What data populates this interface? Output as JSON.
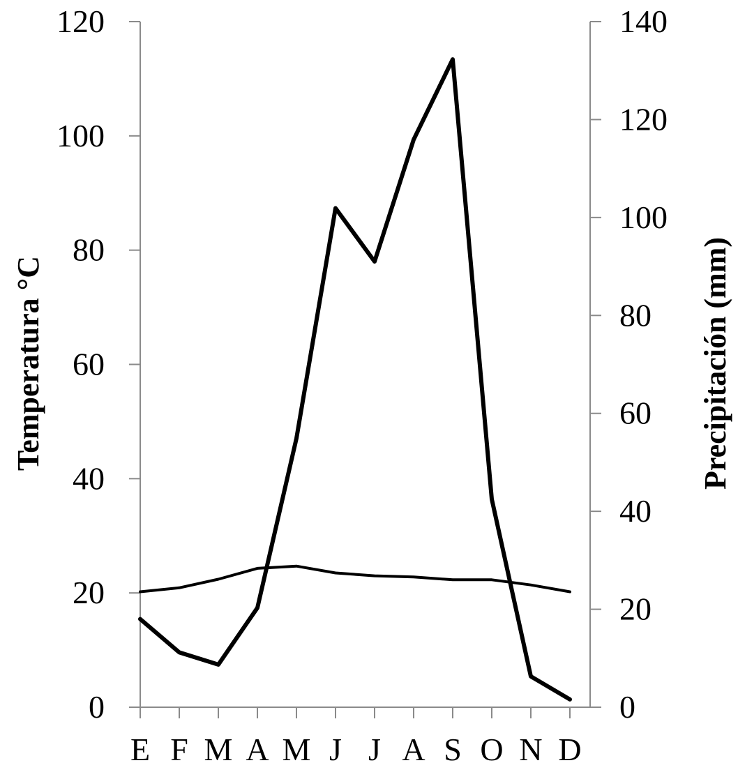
{
  "chart_data": {
    "type": "line",
    "title": "",
    "x": [
      "E",
      "F",
      "M",
      "A",
      "M",
      "J",
      "J",
      "A",
      "S",
      "O",
      "N",
      "D"
    ],
    "xlabel": "",
    "y_left": {
      "label": "Temperatura °C",
      "ylim": [
        0,
        120
      ],
      "ticks": [
        0,
        20,
        40,
        60,
        80,
        100,
        120
      ]
    },
    "y_right": {
      "label": "Precipitación (mm)",
      "ylim": [
        0,
        140
      ],
      "ticks": [
        0,
        20,
        40,
        60,
        80,
        100,
        120,
        140
      ]
    },
    "grid": false,
    "legend": "none",
    "series": [
      {
        "axis": "left",
        "color": "#000000",
        "values": [
          20.2,
          20.9,
          22.4,
          24.3,
          24.7,
          23.5,
          23.0,
          22.8,
          22.3,
          22.3,
          21.4,
          20.2
        ]
      },
      {
        "axis": "right",
        "color": "#000000",
        "values": [
          18.0,
          11.2,
          8.7,
          20.3,
          54.9,
          101.9,
          91.0,
          115.9,
          132.3,
          42.5,
          6.3,
          1.6
        ]
      }
    ]
  }
}
